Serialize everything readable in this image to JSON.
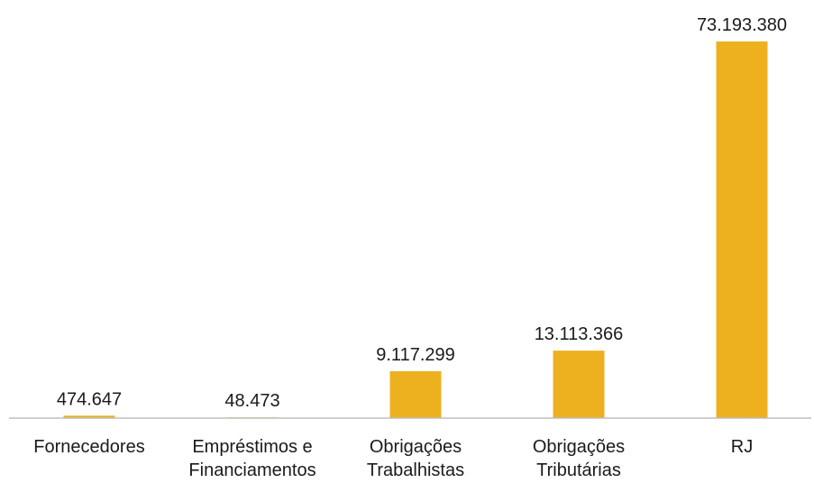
{
  "chart_data": {
    "type": "bar",
    "categories": [
      [
        "Fornecedores"
      ],
      [
        "Empréstimos e",
        "Financiamentos"
      ],
      [
        "Obrigações",
        "Trabalhistas"
      ],
      [
        "Obrigações",
        "Tributárias"
      ],
      [
        "RJ"
      ]
    ],
    "values": [
      474647,
      48473,
      9117299,
      13113366,
      73193380
    ],
    "data_labels": [
      "474.647",
      "48.473",
      "9.117.299",
      "13.113.366",
      "73.193.380"
    ],
    "title": "",
    "xlabel": "",
    "ylabel": "",
    "ylim": [
      0,
      73193380
    ],
    "grid": false,
    "legend": "none",
    "colors": {
      "bar": "#EDB120",
      "axis": "#BFBFBF",
      "text": "#1A1A1A"
    }
  }
}
